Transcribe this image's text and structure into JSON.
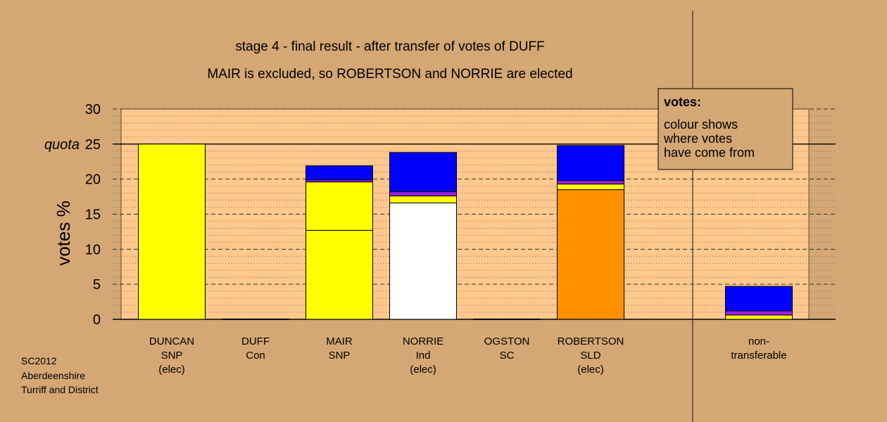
{
  "chart_data": {
    "type": "bar",
    "stacked": true,
    "title": "stage 4 - final result - after transfer of votes of DUFF",
    "subtitle": "MAIR is excluded, so ROBERTSON and NORRIE are elected",
    "ylabel": "votes %",
    "ylim": [
      0,
      30
    ],
    "yticks": [
      "0",
      "5",
      "10",
      "15",
      "20",
      "25",
      "30"
    ],
    "quota": {
      "label": "quota",
      "value": 25
    },
    "grid": true,
    "categories": [
      [
        "DUNCAN",
        "SNP",
        "(elec)"
      ],
      [
        "DUFF",
        "Con"
      ],
      [
        "MAIR",
        "SNP"
      ],
      [
        "NORRIE",
        "Ind",
        "(elec)"
      ],
      [
        "OGSTON",
        "SC"
      ],
      [
        "ROBERTSON",
        "SLD",
        "(elec)"
      ],
      [
        "non-",
        "transferable"
      ]
    ],
    "bars": [
      {
        "segments": [
          {
            "value": 25.0,
            "color": "#FFFF00"
          }
        ]
      },
      {
        "segments": []
      },
      {
        "segments": [
          {
            "value": 12.7,
            "color": "#FFFF00"
          },
          {
            "value": 6.9,
            "color": "#FFFF00"
          },
          {
            "value": 0.3,
            "color": "#9B1FE8"
          },
          {
            "value": 2.0,
            "color": "#0000FF"
          }
        ]
      },
      {
        "segments": [
          {
            "value": 16.6,
            "color": "#FFFFFF"
          },
          {
            "value": 1.0,
            "color": "#FFFF00"
          },
          {
            "value": 0.6,
            "color": "#9B1FE8"
          },
          {
            "value": 5.6,
            "color": "#0000FF"
          }
        ]
      },
      {
        "segments": []
      },
      {
        "segments": [
          {
            "value": 18.5,
            "color": "#FF9100"
          },
          {
            "value": 0.8,
            "color": "#FFFF00"
          },
          {
            "value": 0.5,
            "color": "#9B1FE8"
          },
          {
            "value": 5.0,
            "color": "#0000FF"
          }
        ]
      },
      {
        "segments": [
          {
            "value": 0.6,
            "color": "#FFFF00"
          },
          {
            "value": 0.6,
            "color": "#9B1FE8"
          },
          {
            "value": 3.5,
            "color": "#0000FF"
          }
        ]
      }
    ],
    "legend": {
      "position": "top-right",
      "heading": "votes:",
      "lines": [
        "colour shows",
        "where votes",
        "have come from"
      ]
    },
    "colors": {
      "background": "#D4A774",
      "plot_area": "#FFC88C",
      "yellow": "#FFFF00",
      "purple": "#9B1FE8",
      "blue": "#0000FF",
      "orange": "#FF9100",
      "white": "#FFFFFF"
    }
  },
  "footer": {
    "line1": "SC2012",
    "line2": "Aberdeenshire",
    "line3": "Turriff and District"
  }
}
